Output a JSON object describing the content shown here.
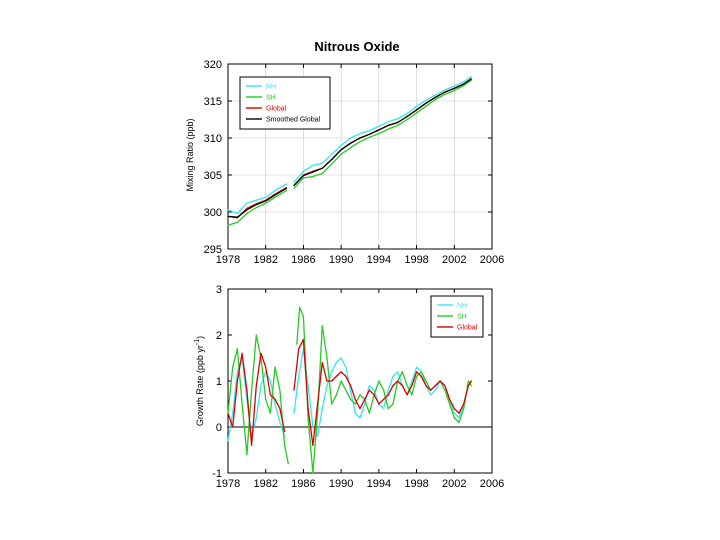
{
  "chart_data": [
    {
      "type": "line",
      "title": "Nitrous Oxide",
      "xlabel": "",
      "ylabel": "Mixing Ratio (ppb)",
      "xlim": [
        1978,
        2006
      ],
      "ylim": [
        295,
        320
      ],
      "xticks": [
        "1978",
        "1982",
        "1986",
        "1990",
        "1994",
        "1998",
        "2002",
        "2006"
      ],
      "yticks": [
        "295",
        "300",
        "305",
        "310",
        "315",
        "320"
      ],
      "grid": true,
      "legend_position": "top-left",
      "series": [
        {
          "name": "NH",
          "color": "#33e6f0",
          "x": [
            1978.0,
            1979.0,
            1980.0,
            1981.0,
            1982.0,
            1983.0,
            1984.2,
            null,
            1985.0,
            1986.0,
            1987.0,
            1988.0,
            1989.0,
            1990.0,
            1991.0,
            1992.0,
            1993.0,
            1994.0,
            1995.0,
            1996.0,
            1997.0,
            1998.0,
            1999.0,
            2000.0,
            2001.0,
            2002.0,
            2003.0,
            2003.8
          ],
          "y": [
            300.3,
            299.8,
            301.2,
            301.6,
            302.0,
            302.9,
            303.8,
            null,
            304.0,
            305.5,
            306.3,
            306.6,
            307.8,
            309.0,
            310.0,
            310.6,
            311.0,
            311.6,
            312.2,
            312.6,
            313.3,
            314.3,
            315.1,
            315.8,
            316.5,
            317.0,
            317.6,
            318.3
          ]
        },
        {
          "name": "SH",
          "color": "#22cc22",
          "x": [
            1978.0,
            1979.0,
            1980.0,
            1981.0,
            1982.0,
            1983.0,
            1984.2,
            null,
            1985.0,
            1986.0,
            1987.0,
            1988.0,
            1989.0,
            1990.0,
            1991.0,
            1992.0,
            1993.0,
            1994.0,
            1995.0,
            1996.0,
            1997.0,
            1998.0,
            1999.0,
            2000.0,
            2001.0,
            2002.0,
            2003.0,
            2003.8
          ],
          "y": [
            298.2,
            298.6,
            299.8,
            300.6,
            301.2,
            302.0,
            302.9,
            null,
            303.2,
            304.6,
            304.8,
            305.2,
            306.5,
            307.8,
            308.7,
            309.5,
            310.1,
            310.6,
            311.2,
            311.7,
            312.5,
            313.4,
            314.3,
            315.2,
            315.9,
            316.4,
            317.1,
            317.8
          ]
        },
        {
          "name": "Global",
          "color": "#dd0000",
          "x": [
            1978.0,
            1979.0,
            1980.0,
            1981.0,
            1982.0,
            1983.0,
            1984.2,
            null,
            1985.0,
            1986.0,
            1987.0,
            1988.0,
            1989.0,
            1990.0,
            1991.0,
            1992.0,
            1993.0,
            1994.0,
            1995.0,
            1996.0,
            1997.0,
            1998.0,
            1999.0,
            2000.0,
            2001.0,
            2002.0,
            2003.0,
            2003.8
          ],
          "y": [
            299.4,
            299.2,
            300.5,
            301.1,
            301.6,
            302.4,
            303.3,
            null,
            303.6,
            305.0,
            305.5,
            305.9,
            307.1,
            308.4,
            309.3,
            310.0,
            310.5,
            311.1,
            311.7,
            312.1,
            312.9,
            313.8,
            314.7,
            315.5,
            316.2,
            316.7,
            317.3,
            318.0
          ]
        },
        {
          "name": "Smoothed Global",
          "color": "#000000",
          "x": [
            1978.0,
            1979.0,
            1980.0,
            1981.0,
            1982.0,
            1983.0,
            1984.2,
            null,
            1985.0,
            1986.0,
            1987.0,
            1988.0,
            1989.0,
            1990.0,
            1991.0,
            1992.0,
            1993.0,
            1994.0,
            1995.0,
            1996.0,
            1997.0,
            1998.0,
            1999.0,
            2000.0,
            2001.0,
            2002.0,
            2003.0,
            2003.8
          ],
          "y": [
            299.4,
            299.3,
            300.3,
            301.0,
            301.5,
            302.3,
            303.2,
            null,
            303.6,
            304.9,
            305.4,
            305.9,
            307.1,
            308.4,
            309.3,
            310.0,
            310.5,
            311.1,
            311.7,
            312.1,
            312.9,
            313.8,
            314.7,
            315.5,
            316.2,
            316.7,
            317.3,
            318.0
          ]
        }
      ]
    },
    {
      "type": "line",
      "title": "",
      "xlabel": "",
      "ylabel": "Growth Rate (ppb yr",
      "ylabel_sup": "-1",
      "ylabel_end": ")",
      "xlim": [
        1978,
        2006
      ],
      "ylim": [
        -1,
        3
      ],
      "xticks": [
        "1978",
        "1982",
        "1986",
        "1990",
        "1994",
        "1998",
        "2002",
        "2006"
      ],
      "yticks": [
        "-1",
        "0",
        "1",
        "2",
        "3"
      ],
      "grid": false,
      "zero_line": true,
      "legend_position": "top-right",
      "series": [
        {
          "name": "NH",
          "color": "#33e6f0",
          "x": [
            1978.0,
            1978.5,
            1979.0,
            1979.5,
            1980.0,
            1980.5,
            1981.0,
            1981.5,
            1982.0,
            1982.5,
            1983.0,
            1983.5,
            1984.0,
            null,
            1985.0,
            1985.5,
            1986.0,
            1986.5,
            1987.0,
            1987.5,
            1988.0,
            1988.5,
            1989.0,
            1989.5,
            1990.0,
            1990.5,
            1991.0,
            1991.5,
            1992.0,
            1992.5,
            1993.0,
            1993.5,
            1994.0,
            1994.5,
            1995.0,
            1995.5,
            1996.0,
            1996.5,
            1997.0,
            1997.5,
            1998.0,
            1998.5,
            1999.0,
            1999.5,
            2000.0,
            2000.5,
            2001.0,
            2001.5,
            2002.0,
            2002.5,
            2003.0,
            2003.5,
            2003.8
          ],
          "y": [
            -0.3,
            0.3,
            1.2,
            1.5,
            0.6,
            -0.2,
            0.2,
            0.9,
            1.2,
            1.0,
            0.5,
            0.1,
            -0.2,
            null,
            0.3,
            1.1,
            1.7,
            0.9,
            0.0,
            -0.2,
            0.4,
            0.9,
            1.2,
            1.4,
            1.5,
            1.3,
            0.8,
            0.3,
            0.2,
            0.5,
            0.9,
            0.8,
            0.5,
            0.4,
            0.8,
            1.1,
            1.2,
            0.9,
            0.7,
            1.0,
            1.3,
            1.2,
            0.9,
            0.7,
            0.8,
            1.0,
            0.9,
            0.6,
            0.3,
            0.2,
            0.5,
            0.9,
            1.0
          ]
        },
        {
          "name": "SH",
          "color": "#22cc22",
          "x": [
            1978.0,
            1978.5,
            1979.0,
            1979.5,
            1980.0,
            1980.5,
            1981.0,
            1981.5,
            1982.0,
            1982.5,
            1983.0,
            1983.5,
            1984.0,
            1984.4,
            null,
            1985.3,
            1985.6,
            1986.0,
            1986.5,
            1987.0,
            1987.5,
            1988.0,
            1988.5,
            1989.0,
            1989.5,
            1990.0,
            1990.5,
            1991.0,
            1991.5,
            1992.0,
            1992.5,
            1993.0,
            1993.5,
            1994.0,
            1994.5,
            1995.0,
            1995.5,
            1996.0,
            1996.5,
            1997.0,
            1997.5,
            1998.0,
            1998.5,
            1999.0,
            1999.5,
            2000.0,
            2000.5,
            2001.0,
            2001.5,
            2002.0,
            2002.5,
            2003.0,
            2003.5,
            2003.8
          ],
          "y": [
            0.3,
            1.3,
            1.7,
            0.5,
            -0.6,
            0.8,
            2.0,
            1.5,
            0.6,
            0.3,
            1.3,
            0.8,
            -0.4,
            -0.8,
            null,
            1.8,
            2.6,
            2.4,
            0.2,
            -1.0,
            0.3,
            2.2,
            1.5,
            0.5,
            0.7,
            1.0,
            0.8,
            0.6,
            0.5,
            0.7,
            0.6,
            0.3,
            0.7,
            1.0,
            0.8,
            0.4,
            0.5,
            1.0,
            1.2,
            0.9,
            0.7,
            1.1,
            1.2,
            1.0,
            0.8,
            0.9,
            1.0,
            0.8,
            0.5,
            0.2,
            0.1,
            0.4,
            1.0,
            0.9
          ]
        },
        {
          "name": "Global",
          "color": "#dd0000",
          "x": [
            1978.0,
            1978.5,
            1979.0,
            1979.5,
            1980.0,
            1980.5,
            1981.0,
            1981.5,
            1982.0,
            1982.5,
            1983.0,
            1983.5,
            1984.0,
            null,
            1985.0,
            1985.5,
            1986.0,
            1986.5,
            1987.0,
            1987.5,
            1988.0,
            1988.5,
            1989.0,
            1989.5,
            1990.0,
            1990.5,
            1991.0,
            1991.5,
            1992.0,
            1992.5,
            1993.0,
            1993.5,
            1994.0,
            1994.5,
            1995.0,
            1995.5,
            1996.0,
            1996.5,
            1997.0,
            1997.5,
            1998.0,
            1998.5,
            1999.0,
            1999.5,
            2000.0,
            2000.5,
            2001.0,
            2001.5,
            2002.0,
            2002.5,
            2003.0,
            2003.5,
            2003.8
          ],
          "y": [
            0.3,
            0.0,
            1.0,
            1.6,
            0.8,
            -0.4,
            0.9,
            1.6,
            1.3,
            0.7,
            0.6,
            0.4,
            -0.1,
            null,
            0.8,
            1.7,
            1.9,
            0.4,
            -0.4,
            0.5,
            1.4,
            1.0,
            1.0,
            1.1,
            1.2,
            1.1,
            0.9,
            0.6,
            0.4,
            0.6,
            0.8,
            0.7,
            0.5,
            0.6,
            0.7,
            0.9,
            1.0,
            0.9,
            0.7,
            0.9,
            1.2,
            1.1,
            0.9,
            0.8,
            0.9,
            1.0,
            0.9,
            0.6,
            0.4,
            0.3,
            0.5,
            0.9,
            1.0
          ]
        }
      ]
    }
  ]
}
